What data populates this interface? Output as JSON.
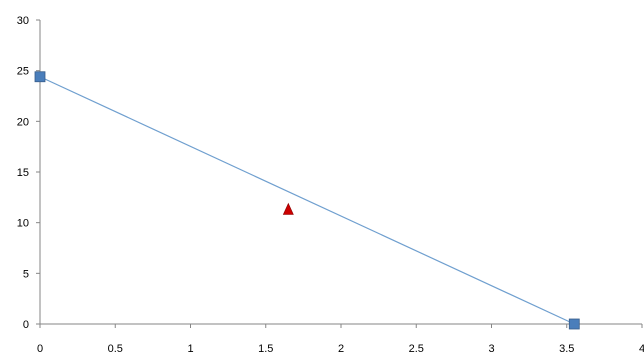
{
  "chart_data": {
    "type": "scatter",
    "title": "",
    "xlabel": "",
    "ylabel": "",
    "xlim": [
      0,
      4
    ],
    "ylim": [
      0,
      30
    ],
    "x_ticks": [
      "0",
      "0.5",
      "1",
      "1.5",
      "2",
      "2.5",
      "3",
      "3.5",
      "4"
    ],
    "y_ticks": [
      "0",
      "5",
      "10",
      "15",
      "20",
      "25",
      "30"
    ],
    "grid": false,
    "series": [
      {
        "marker": "square",
        "color": "#4a7ebb",
        "line": true,
        "points": [
          {
            "x": 0,
            "y": 24.4
          },
          {
            "x": 3.55,
            "y": 0
          }
        ]
      },
      {
        "marker": "triangle",
        "color": "#cc0000",
        "line": false,
        "points": [
          {
            "x": 1.65,
            "y": 11.3
          }
        ]
      }
    ]
  }
}
